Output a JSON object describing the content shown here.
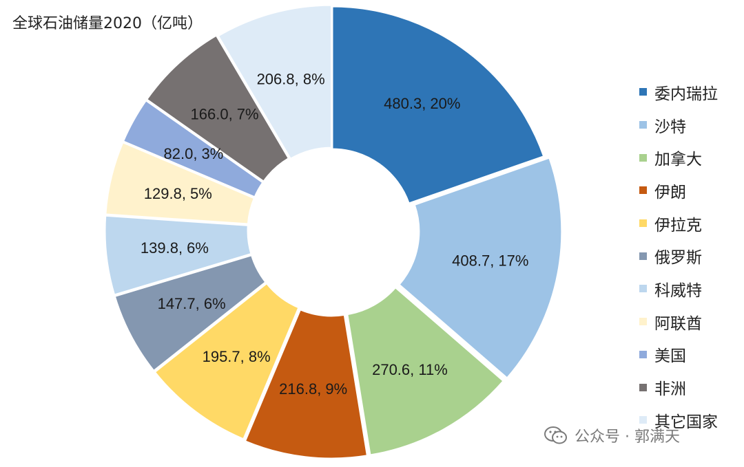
{
  "chart_data": {
    "type": "pie",
    "title": "全球石油储量2020（亿吨）",
    "slices": [
      {
        "name": "委内瑞拉",
        "value": 480.3,
        "pct": "20%",
        "label": "480.3, 20%",
        "color": "#2e75b6"
      },
      {
        "name": "沙特",
        "value": 408.7,
        "pct": "17%",
        "label": "408.7, 17%",
        "color": "#9dc3e6"
      },
      {
        "name": "加拿大",
        "value": 270.6,
        "pct": "11%",
        "label": "270.6, 11%",
        "color": "#a9d18e"
      },
      {
        "name": "伊朗",
        "value": 216.8,
        "pct": "9%",
        "label": "216.8, 9%",
        "color": "#c55a11"
      },
      {
        "name": "伊拉克",
        "value": 195.7,
        "pct": "8%",
        "label": "195.7, 8%",
        "color": "#ffd966"
      },
      {
        "name": "俄罗斯",
        "value": 147.7,
        "pct": "6%",
        "label": "147.7, 6%",
        "color": "#8497b0"
      },
      {
        "name": "科威特",
        "value": 139.8,
        "pct": "6%",
        "label": "139.8, 6%",
        "color": "#bdd7ee"
      },
      {
        "name": "阿联酋",
        "value": 129.8,
        "pct": "5%",
        "label": "129.8, 5%",
        "color": "#fff2cc"
      },
      {
        "name": "美国",
        "value": 82.0,
        "pct": "3%",
        "label": "82.0, 3%",
        "color": "#8faadc"
      },
      {
        "name": "非洲",
        "value": 166.0,
        "pct": "7%",
        "label": "166.0, 7%",
        "color": "#767171"
      },
      {
        "name": "其它国家",
        "value": 206.8,
        "pct": "8%",
        "label": "206.8, 8%",
        "color": "#deebf7"
      }
    ],
    "legend_position": "right"
  },
  "watermark": {
    "text": "公众号 · 郭满天",
    "icon": "wechat-icon"
  }
}
